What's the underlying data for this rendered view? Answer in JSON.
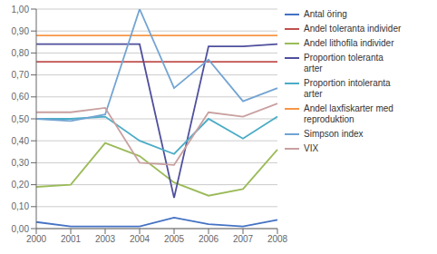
{
  "chart_data": {
    "type": "line",
    "categories": [
      "2000",
      "2001",
      "2003",
      "2004",
      "2005",
      "2006",
      "2007",
      "2008"
    ],
    "series": [
      {
        "name": "Antal öring",
        "color": "#4472C4",
        "values": [
          0.03,
          0.01,
          0.01,
          0.01,
          0.05,
          0.02,
          0.01,
          0.04
        ]
      },
      {
        "name": "Andel toleranta individer",
        "color": "#C0504D",
        "values": [
          0.76,
          0.76,
          0.76,
          0.76,
          0.76,
          0.76,
          0.76,
          0.76
        ]
      },
      {
        "name": "Andel lithofila individer",
        "color": "#9BBB59",
        "values": [
          0.19,
          0.2,
          0.39,
          0.33,
          0.21,
          0.15,
          0.18,
          0.36
        ]
      },
      {
        "name": "Proportion toleranta\narter",
        "color": "#4F4F9D",
        "values": [
          0.84,
          0.84,
          0.84,
          0.84,
          0.14,
          0.83,
          0.83,
          0.84
        ]
      },
      {
        "name": "Proportion intoleranta\narter",
        "color": "#4BACC6",
        "values": [
          0.5,
          0.5,
          0.51,
          0.4,
          0.34,
          0.5,
          0.41,
          0.51
        ]
      },
      {
        "name": "Andel laxfiskarter med\nreproduktion",
        "color": "#F79646",
        "values": [
          0.88,
          0.88,
          0.88,
          0.88,
          0.88,
          0.88,
          0.88,
          0.88
        ]
      },
      {
        "name": "Simpson index",
        "color": "#72A4D3",
        "values": [
          0.5,
          0.49,
          0.52,
          1.0,
          0.64,
          0.77,
          0.58,
          0.64
        ]
      },
      {
        "name": "VIX",
        "color": "#C9A0A0",
        "values": [
          0.53,
          0.53,
          0.55,
          0.3,
          0.29,
          0.53,
          0.51,
          0.57
        ]
      }
    ],
    "ylim": [
      0.0,
      1.0
    ],
    "yticks": [
      {
        "value": 0.0,
        "label": "0,00"
      },
      {
        "value": 0.1,
        "label": "0,10"
      },
      {
        "value": 0.2,
        "label": "0,20"
      },
      {
        "value": 0.3,
        "label": "0,30"
      },
      {
        "value": 0.4,
        "label": "0,40"
      },
      {
        "value": 0.5,
        "label": "0,50"
      },
      {
        "value": 0.6,
        "label": "0,60"
      },
      {
        "value": 0.7,
        "label": "0,70"
      },
      {
        "value": 0.8,
        "label": "0,80"
      },
      {
        "value": 0.9,
        "label": "0,90"
      },
      {
        "value": 1.0,
        "label": "1,00"
      }
    ],
    "grid": "y",
    "legend": "right"
  }
}
